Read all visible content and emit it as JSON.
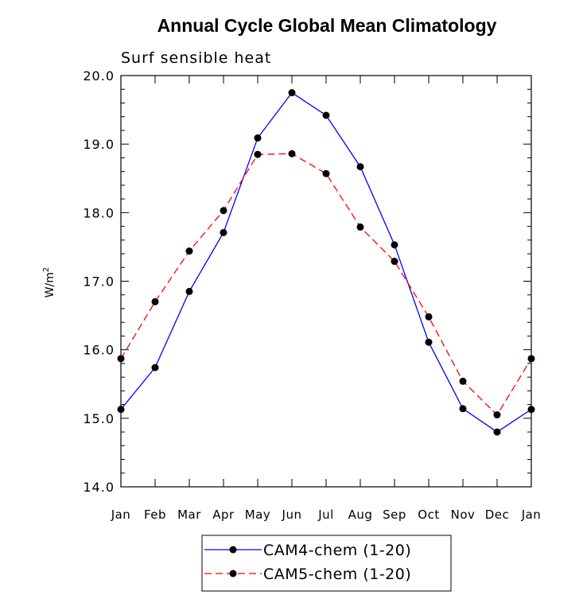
{
  "chart_data": {
    "type": "line",
    "title": "Annual Cycle Global Mean Climatology",
    "subtitle": "Surf sensible heat",
    "ylabel_base": "W/m",
    "ylabel_sup": "2",
    "xlabel": "",
    "categories": [
      "Jan",
      "Feb",
      "Mar",
      "Apr",
      "May",
      "Jun",
      "Jul",
      "Aug",
      "Sep",
      "Oct",
      "Nov",
      "Dec",
      "Jan"
    ],
    "ylim": [
      14.0,
      20.0
    ],
    "yticks": [
      "14.0",
      "15.0",
      "16.0",
      "17.0",
      "18.0",
      "19.0",
      "20.0"
    ],
    "grid": false,
    "legend_position": "bottom",
    "series": [
      {
        "name": "CAM4-chem (1-20)",
        "color": "#0000ff",
        "dash": "solid",
        "values": [
          15.13,
          15.74,
          16.85,
          17.71,
          19.09,
          19.75,
          19.42,
          18.67,
          17.53,
          16.11,
          15.14,
          14.8,
          15.13
        ]
      },
      {
        "name": "CAM5-chem (1-20)",
        "color": "#ff0000",
        "dash": "dashed",
        "values": [
          15.87,
          16.7,
          17.44,
          18.03,
          18.85,
          18.86,
          18.57,
          17.79,
          17.29,
          16.48,
          15.54,
          15.05,
          15.87
        ]
      }
    ]
  }
}
